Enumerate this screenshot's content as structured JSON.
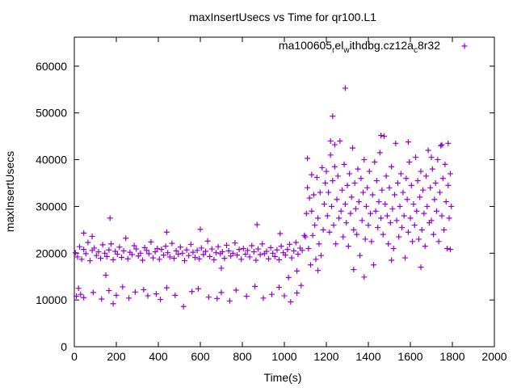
{
  "chart_data": {
    "type": "scatter",
    "title": "maxInsertUsecs vs Time for qr100.L1",
    "xlabel": "Time(s)",
    "ylabel": "maxInsertUsecs",
    "xlim": [
      0,
      2000
    ],
    "ylim": [
      0,
      66200
    ],
    "xticks": [
      0,
      200,
      400,
      600,
      800,
      1000,
      1200,
      1400,
      1600,
      1800,
      2000
    ],
    "yticks": [
      0,
      10000,
      20000,
      30000,
      40000,
      50000,
      60000
    ],
    "grid": false,
    "legend_position": "top-right",
    "series": [
      {
        "name": "ma100605",
        "legend_main": "ma100605",
        "legend_sub1": "r",
        "legend_mid": "el",
        "legend_sub2": "w",
        "legend_mid2": "ithdbg.cz12a",
        "legend_sub3": "c",
        "legend_end": "8r32",
        "color": "#9400d3",
        "band": {
          "x_start": 5,
          "x_step": 10,
          "y": [
            20100,
            19200,
            21400,
            18700,
            20800,
            19900,
            22300,
            18400,
            20600,
            21100,
            19500,
            20300,
            18900,
            21800,
            20000,
            19300,
            20700,
            22000,
            18600,
            20400,
            19800,
            21300,
            19100,
            20500,
            23200,
            18800,
            20200,
            19700,
            21600,
            20900,
            19400,
            20000,
            18500,
            21200,
            20600,
            19900,
            22400,
            19000,
            20300,
            21000,
            18700,
            20800,
            19600,
            21500,
            20100,
            19200,
            22100,
            18900,
            20500,
            19800,
            21300,
            20000,
            18400,
            20700,
            19500,
            21900,
            20200,
            19100,
            20600,
            18800,
            21100,
            19700,
            20400,
            22600,
            19300,
            20900,
            18600,
            20100,
            21400,
            19900,
            20300,
            18900,
            21700,
            20500,
            19400,
            20000,
            22200,
            19600,
            20800,
            18700,
            21000,
            19800,
            20600,
            19200,
            21600,
            20300,
            18500,
            20900,
            19700,
            22000,
            19900,
            20400,
            18800,
            21200,
            20000,
            19300,
            20700,
            18600,
            21500,
            20100,
            19600,
            20800,
            21900,
            19000,
            20500,
            22300,
            19800,
            21100,
            20600,
            23800
          ]
        },
        "band2": {
          "x_start": 1200,
          "x_step": 5,
          "y": [
            37500,
            28000,
            33000,
            24500,
            41000,
            30000,
            35500,
            26000,
            38500,
            22000,
            31500,
            36500,
            27500,
            44000,
            29000,
            33500,
            23500,
            39000,
            30500,
            26500,
            34500,
            21500,
            37000,
            28500,
            32000,
            42500,
            25000,
            35000,
            29500,
            24000,
            38000,
            31000,
            19500,
            36000,
            27000,
            33000,
            40000,
            23000,
            30000,
            34000,
            26000,
            37500,
            28500,
            22500,
            32500,
            17500,
            39500,
            29000,
            35500,
            25500,
            31000,
            41500,
            27500,
            33500,
            24000,
            45000,
            30500,
            36500,
            28000,
            22000,
            34000,
            26500,
            38500,
            29500,
            21000,
            32500,
            43500,
            27000,
            35000,
            23500,
            30000,
            37000,
            25500,
            33000,
            28000,
            19000,
            36000,
            31500,
            24500,
            39500,
            27500,
            34500,
            22500,
            30500,
            26000,
            40500,
            29000,
            35500,
            23000,
            32000,
            37500,
            25000,
            33500,
            28500,
            21500,
            36500,
            30000,
            42000,
            26500,
            34000,
            27000,
            38000,
            24000,
            31500,
            35000,
            29000,
            40000,
            22500,
            33000,
            43000,
            28000,
            36000,
            25000,
            39000,
            31000,
            21000,
            34500,
            27500,
            37000,
            30000
          ]
        },
        "points": [
          [
            10,
            10800
          ],
          [
            20,
            12500
          ],
          [
            30,
            11200
          ],
          [
            45,
            10500
          ],
          [
            90,
            11600
          ],
          [
            130,
            10200
          ],
          [
            165,
            12000
          ],
          [
            185,
            9200
          ],
          [
            200,
            11000
          ],
          [
            230,
            12800
          ],
          [
            260,
            10400
          ],
          [
            290,
            11700
          ],
          [
            330,
            12200
          ],
          [
            350,
            10900
          ],
          [
            390,
            11300
          ],
          [
            410,
            10100
          ],
          [
            440,
            12600
          ],
          [
            480,
            11000
          ],
          [
            520,
            8600
          ],
          [
            560,
            11800
          ],
          [
            590,
            12400
          ],
          [
            640,
            10600
          ],
          [
            680,
            10300
          ],
          [
            700,
            11600
          ],
          [
            740,
            9800
          ],
          [
            770,
            12100
          ],
          [
            820,
            10800
          ],
          [
            860,
            12900
          ],
          [
            900,
            10400
          ],
          [
            940,
            11200
          ],
          [
            975,
            12700
          ],
          [
            1000,
            10900
          ],
          [
            1030,
            9600
          ],
          [
            1060,
            11500
          ],
          [
            1080,
            13100
          ],
          [
            170,
            27500
          ],
          [
            45,
            24300
          ],
          [
            85,
            23600
          ],
          [
            440,
            24500
          ],
          [
            600,
            25100
          ],
          [
            870,
            26100
          ],
          [
            980,
            24200
          ],
          [
            1020,
            14800
          ],
          [
            1060,
            16200
          ],
          [
            150,
            15300
          ],
          [
            700,
            16800
          ],
          [
            1100,
            23500
          ],
          [
            1105,
            28500
          ],
          [
            1110,
            34000
          ],
          [
            1115,
            21000
          ],
          [
            1120,
            31800
          ],
          [
            1125,
            17500
          ],
          [
            1130,
            29000
          ],
          [
            1135,
            23800
          ],
          [
            1140,
            32500
          ],
          [
            1145,
            26000
          ],
          [
            1150,
            18700
          ],
          [
            1155,
            36200
          ],
          [
            1160,
            27500
          ],
          [
            1165,
            22000
          ],
          [
            1170,
            33000
          ],
          [
            1175,
            19500
          ],
          [
            1180,
            38300
          ],
          [
            1185,
            25000
          ],
          [
            1190,
            30500
          ],
          [
            1195,
            35000
          ],
          [
            1110,
            40300
          ],
          [
            1130,
            36800
          ],
          [
            1160,
            16300
          ],
          [
            1290,
            55300
          ],
          [
            1230,
            49300
          ],
          [
            1380,
            14900
          ],
          [
            1460,
            45200
          ],
          [
            1590,
            43800
          ],
          [
            1750,
            43200
          ],
          [
            1780,
            43500
          ],
          [
            1330,
            16500
          ],
          [
            1510,
            18500
          ],
          [
            1650,
            17000
          ],
          [
            1220,
            44000
          ],
          [
            1240,
            43200
          ],
          [
            1790,
            20800
          ],
          [
            1700,
            40500
          ]
        ]
      }
    ]
  }
}
